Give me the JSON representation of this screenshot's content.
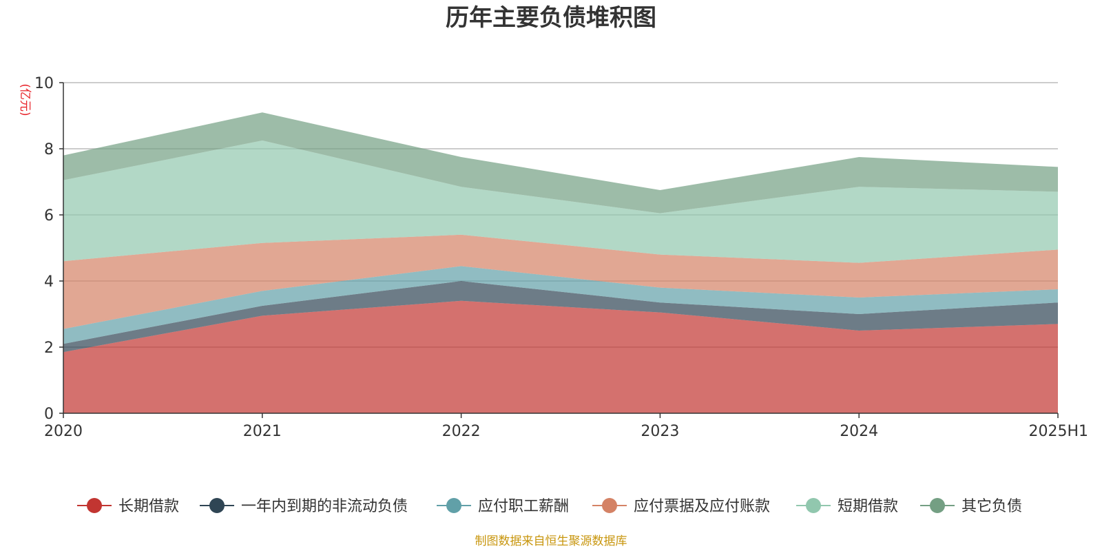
{
  "chart_data": {
    "type": "area",
    "stacked": true,
    "title": "历年主要负债堆积图",
    "unit_label": "(亿元)",
    "source_note": "制图数据来自恒生聚源数据库",
    "categories": [
      "2020",
      "2021",
      "2022",
      "2023",
      "2024",
      "2025H1"
    ],
    "ylim": [
      0,
      10
    ],
    "yticks": [
      "0",
      "2",
      "4",
      "6",
      "8",
      "10"
    ],
    "grid": true,
    "legend_position": "bottom",
    "series": [
      {
        "name": "长期借款",
        "color": "#c23531",
        "values": [
          1.85,
          2.95,
          3.4,
          3.05,
          2.5,
          2.7
        ]
      },
      {
        "name": "一年内到期的非流动负债",
        "color": "#2f4554",
        "values": [
          0.25,
          0.3,
          0.6,
          0.3,
          0.5,
          0.65
        ]
      },
      {
        "name": "应付职工薪酬",
        "color": "#61a0a8",
        "values": [
          0.45,
          0.45,
          0.45,
          0.45,
          0.5,
          0.4
        ]
      },
      {
        "name": "应付票据及应付账款",
        "color": "#d48265",
        "values": [
          2.05,
          1.45,
          0.95,
          1.0,
          1.05,
          1.2
        ]
      },
      {
        "name": "短期借款",
        "color": "#91c7ae",
        "values": [
          2.45,
          3.1,
          1.45,
          1.25,
          2.3,
          1.75
        ]
      },
      {
        "name": "其它负债",
        "color": "#749f83",
        "values": [
          0.75,
          0.85,
          0.9,
          0.7,
          0.9,
          0.75
        ]
      }
    ]
  }
}
